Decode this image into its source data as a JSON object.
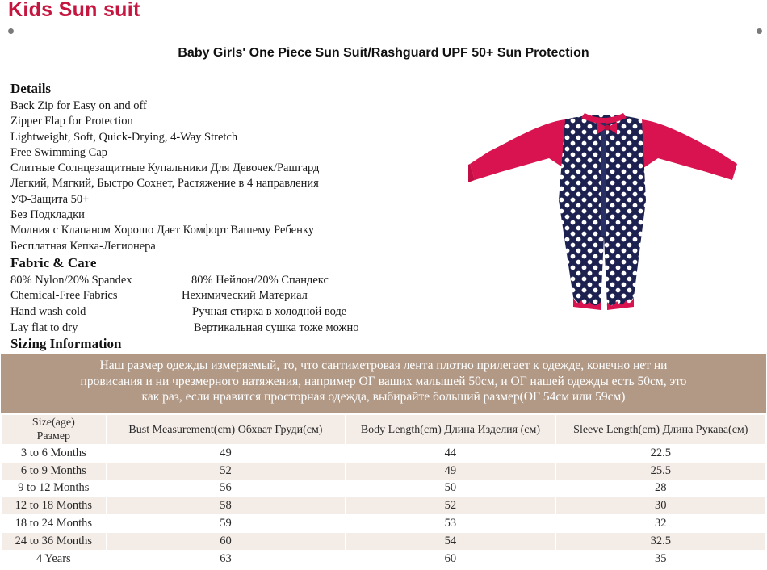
{
  "brand_title": "Kids Sun suit",
  "product_title": "Baby Girls' One Piece Sun Suit/Rashguard UPF 50+ Sun Protection",
  "details": {
    "heading": "Details",
    "items": [
      "Back Zip for Easy on and off",
      "Zipper Flap for Protection",
      "Lightweight, Soft, Quick-Drying, 4-Way Stretch",
      "Free Swimming Cap",
      "Слитные Солнцезащитные Купальники Для Девочек/Рашгард",
      "Легкий, Мягкий, Быстро Сохнет, Растяжение в 4 направления",
      "УФ-Защита 50+",
      "Без Подкладки",
      "Молния с Клапаном Хорошо Дает Комфорт Вашему Ребенку",
      "Бесплатная Кепка-Легионера"
    ]
  },
  "fabric": {
    "heading": "Fabric & Care",
    "rows": [
      {
        "en": "80% Nylon/20% Spandex",
        "ru": "80% Нейлон/20% Спандекс"
      },
      {
        "en": "Chemical-Free Fabrics",
        "ru": "Нехимический Материал"
      },
      {
        "en": "Hand wash cold",
        "ru": "Ручная стирка в холодной воде"
      },
      {
        "en": "Lay flat to dry",
        "ru": "Вертикальная сушка тоже можно"
      }
    ]
  },
  "sizing": {
    "heading": "Sizing Information",
    "note_lines": [
      "Наш размер одежды измеряемый, то, что сантиметровая лента плотно прилегает к одежде, конечно нет ни",
      "провисания и ни чрезмерного натяжения, например ОГ ваших малышей 50см, и ОГ нашей одежды есть 50см, это",
      "как  раз, если нравится просторная одежда, выбирайте больший размер(ОГ 54см или 59см)"
    ],
    "headers": {
      "size_line1": "Size(age)",
      "size_line2": "Размер",
      "bust": "Bust Measurement(cm) Обхват Груди(см)",
      "body": "Body Length(cm) Длина Изделия (см)",
      "sleeve": "Sleeve Length(cm) Длина Рукава(см)"
    },
    "rows": [
      {
        "size": "3 to 6 Months",
        "bust": "49",
        "body": "44",
        "sleeve": "22.5"
      },
      {
        "size": "6 to 9 Months",
        "bust": "52",
        "body": "49",
        "sleeve": "25.5"
      },
      {
        "size": "9 to 12 Months",
        "bust": "56",
        "body": "50",
        "sleeve": "28"
      },
      {
        "size": "12 to 18 Months",
        "bust": "58",
        "body": "52",
        "sleeve": "30"
      },
      {
        "size": "18 to 24 Months",
        "bust": "59",
        "body": "53",
        "sleeve": "32"
      },
      {
        "size": "24 to 36 Months",
        "bust": "60",
        "body": "54",
        "sleeve": "32.5"
      },
      {
        "size": "4 Years",
        "bust": "63",
        "body": "60",
        "sleeve": "35"
      }
    ]
  },
  "colors": {
    "brand": "#c5163f",
    "note_band": "#b29986",
    "table_stripe": "#f4ece6",
    "suit_navy": "#1d2150",
    "suit_pink": "#d8134f"
  }
}
